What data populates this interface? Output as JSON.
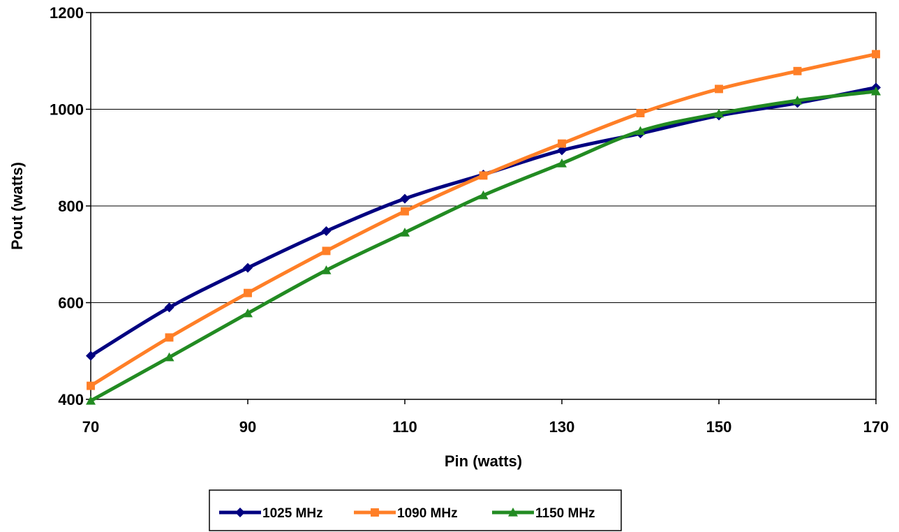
{
  "chart_data": {
    "type": "line",
    "xlabel": "Pin (watts)",
    "ylabel": "Pout (watts)",
    "xlim": [
      70,
      170
    ],
    "ylim": [
      400,
      1200
    ],
    "xticks": [
      70,
      90,
      110,
      130,
      150,
      170
    ],
    "yticks": [
      400,
      600,
      800,
      1000,
      1200
    ],
    "grid": "horizontal",
    "legend_position": "bottom",
    "series": [
      {
        "name": "1025 MHz",
        "color": "#000080",
        "marker": "diamond",
        "x": [
          70,
          80,
          90,
          100,
          110,
          120,
          130,
          140,
          150,
          160,
          170
        ],
        "y": [
          490,
          590,
          672,
          748,
          815,
          865,
          915,
          950,
          987,
          1013,
          1045
        ]
      },
      {
        "name": "1090 MHz",
        "color": "#FF7F27",
        "marker": "square",
        "x": [
          70,
          80,
          90,
          100,
          110,
          120,
          130,
          140,
          150,
          160,
          170
        ],
        "y": [
          428,
          528,
          620,
          707,
          789,
          863,
          929,
          992,
          1042,
          1079,
          1114
        ]
      },
      {
        "name": "1150 MHz",
        "color": "#228B22",
        "marker": "triangle",
        "x": [
          70,
          80,
          90,
          100,
          110,
          120,
          130,
          140,
          150,
          160,
          170
        ],
        "y": [
          397,
          487,
          578,
          667,
          745,
          822,
          888,
          955,
          991,
          1018,
          1037
        ]
      }
    ]
  }
}
